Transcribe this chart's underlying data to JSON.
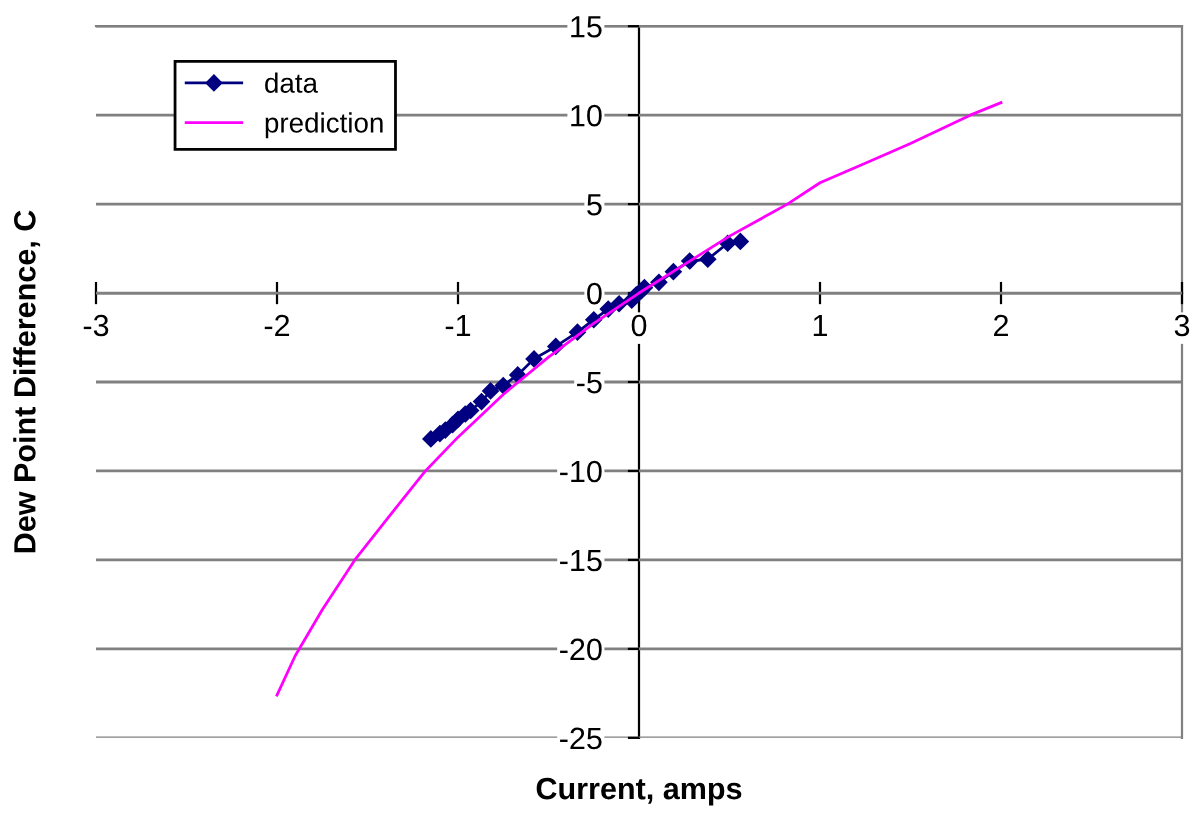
{
  "chart_data": {
    "type": "line",
    "xlabel": "Current, amps",
    "ylabel": "Dew Point Difference, C",
    "xlim": [
      -3,
      3
    ],
    "ylim": [
      -25,
      15
    ],
    "xticks": [
      -3,
      -2,
      -1,
      0,
      1,
      2,
      3
    ],
    "yticks": [
      -25,
      -20,
      -15,
      -10,
      -5,
      0,
      5,
      10,
      15
    ],
    "grid": "y",
    "legend": "top left",
    "series": [
      {
        "name": "data",
        "color": "#000080",
        "marker": "diamond",
        "x": [
          0.56,
          0.49,
          0.38,
          0.28,
          0.19,
          0.11,
          0.03,
          0.01,
          -0.015,
          -0.04,
          -0.11,
          -0.17,
          -0.25,
          -0.34,
          -0.46,
          -0.58,
          -0.67,
          -0.75,
          -0.82,
          -0.87,
          -0.93,
          -0.96,
          -1.0,
          -1.03,
          -1.07,
          -1.1,
          -1.15
        ],
        "values": [
          2.9,
          2.8,
          1.9,
          1.8,
          1.2,
          0.6,
          0.3,
          0.1,
          -0.1,
          -0.4,
          -0.6,
          -0.9,
          -1.5,
          -2.2,
          -3.0,
          -3.7,
          -4.6,
          -5.2,
          -5.5,
          -6.1,
          -6.6,
          -6.8,
          -7.1,
          -7.4,
          -7.7,
          -7.9,
          -8.2
        ]
      },
      {
        "name": "prediction",
        "color": "#ff00ff",
        "marker": "none",
        "x": [
          -2.0,
          -1.9,
          -1.75,
          -1.57,
          -1.4,
          -1.18,
          -1.0,
          -0.75,
          -0.5,
          -0.25,
          0,
          0.25,
          0.5,
          0.82,
          1.0,
          1.25,
          1.5,
          1.83,
          2.0
        ],
        "values": [
          -22.6,
          -20.4,
          -17.8,
          -15.0,
          -12.8,
          -10.0,
          -8.1,
          -5.7,
          -3.6,
          -1.7,
          0,
          1.6,
          3.2,
          5.0,
          6.2,
          7.3,
          8.4,
          10.0,
          10.7
        ]
      }
    ]
  }
}
